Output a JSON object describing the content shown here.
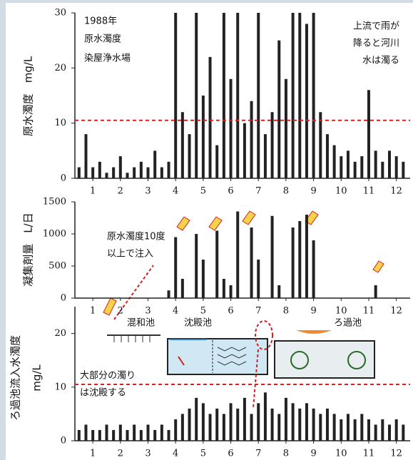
{
  "chart_data": [
    {
      "type": "bar",
      "ylabel": "原水濁度　mg/L",
      "color": "#222222",
      "threshold": 10.5,
      "threshold_color": "#e02020",
      "notes": [
        "1988年",
        "原水濁度",
        "染屋浄水場",
        "上流で雨が",
        "降ると河川",
        "水は濁る"
      ],
      "x": [
        0.5,
        0.75,
        1,
        1.25,
        1.5,
        1.75,
        2,
        2.25,
        2.5,
        2.75,
        3,
        3.25,
        3.5,
        3.75,
        4,
        4.25,
        4.5,
        4.75,
        5,
        5.25,
        5.5,
        5.75,
        6,
        6.25,
        6.5,
        6.75,
        7,
        7.25,
        7.5,
        7.75,
        8,
        8.25,
        8.5,
        8.75,
        9,
        9.25,
        9.5,
        9.75,
        10,
        10.25,
        10.5,
        10.75,
        11,
        11.25,
        11.5,
        11.75,
        12,
        12.25
      ],
      "values": [
        2,
        8,
        2,
        3,
        1,
        2,
        4,
        1,
        2,
        3,
        2,
        5,
        2,
        3,
        30,
        12,
        8,
        30,
        15,
        22,
        6,
        30,
        18,
        30,
        10,
        14,
        30,
        8,
        12,
        25,
        18,
        30,
        30,
        28,
        30,
        12,
        8,
        6,
        4,
        5,
        3,
        4,
        16,
        5,
        3,
        5,
        4,
        3
      ],
      "xlim": [
        0.35,
        12.5
      ],
      "xticks": [
        1,
        2,
        3,
        4,
        5,
        6,
        7,
        8,
        9,
        10,
        11,
        12
      ],
      "ylim": [
        0,
        30
      ],
      "yticks": [
        0,
        10,
        20,
        30
      ]
    },
    {
      "type": "bar",
      "ylabel": "凝集剤量　L/日",
      "color": "#222222",
      "notes": [
        "原水濁度10度",
        "以上で注入"
      ],
      "x": [
        0.5,
        0.75,
        1,
        1.25,
        1.5,
        1.75,
        2,
        2.25,
        2.5,
        2.75,
        3,
        3.25,
        3.5,
        3.75,
        4,
        4.25,
        4.5,
        4.75,
        5,
        5.25,
        5.5,
        5.75,
        6,
        6.25,
        6.5,
        6.75,
        7,
        7.25,
        7.5,
        7.75,
        8,
        8.25,
        8.5,
        8.75,
        9,
        9.25,
        9.5,
        9.75,
        10,
        10.25,
        10.5,
        10.75,
        11,
        11.25,
        11.5,
        11.75,
        12,
        12.25
      ],
      "values": [
        0,
        0,
        0,
        0,
        0,
        0,
        0,
        0,
        0,
        0,
        0,
        0,
        0,
        120,
        950,
        300,
        0,
        1000,
        600,
        0,
        1050,
        300,
        200,
        1350,
        0,
        1100,
        600,
        0,
        1280,
        200,
        0,
        1100,
        1200,
        1300,
        900,
        0,
        0,
        0,
        0,
        0,
        0,
        0,
        0,
        200,
        0,
        0,
        0,
        0
      ],
      "xlim": [
        0.35,
        12.5
      ],
      "xticks": [
        1,
        2,
        3,
        4,
        5,
        6,
        7,
        8,
        9,
        10,
        11,
        12
      ],
      "ylim": [
        0,
        1500
      ],
      "yticks": [
        0,
        500,
        1000,
        1500
      ]
    },
    {
      "type": "bar",
      "ylabel": [
        "ろ過池流入水濁度",
        "mg/L"
      ],
      "color": "#222222",
      "threshold": 10.5,
      "threshold_color": "#e02020",
      "notes": [
        "混和池",
        "沈殿池",
        "ろ過池",
        "大部分の濁り",
        "は沈殿する"
      ],
      "x": [
        0.5,
        0.75,
        1,
        1.25,
        1.5,
        1.75,
        2,
        2.25,
        2.5,
        2.75,
        3,
        3.25,
        3.5,
        3.75,
        4,
        4.25,
        4.5,
        4.75,
        5,
        5.25,
        5.5,
        5.75,
        6,
        6.25,
        6.5,
        6.75,
        7,
        7.25,
        7.5,
        7.75,
        8,
        8.25,
        8.5,
        8.75,
        9,
        9.25,
        9.5,
        9.75,
        10,
        10.25,
        10.5,
        10.75,
        11,
        11.25,
        11.5,
        11.75,
        12,
        12.25
      ],
      "values": [
        2,
        3,
        2,
        2,
        3,
        2,
        3,
        2,
        3,
        2,
        3,
        2,
        3,
        2,
        4,
        5,
        6,
        8,
        7,
        5,
        6,
        5,
        7,
        6,
        8,
        5,
        7,
        9,
        6,
        5,
        8,
        7,
        6,
        7,
        6,
        5,
        6,
        5,
        4,
        5,
        4,
        5,
        4,
        3,
        4,
        3,
        4,
        3
      ],
      "xlim": [
        0.35,
        12.5
      ],
      "xticks": [
        1,
        2,
        3,
        4,
        5,
        6,
        7,
        8,
        9,
        10,
        11,
        12
      ],
      "ylim": [
        0,
        25
      ],
      "yticks": [
        0,
        10,
        20
      ]
    }
  ]
}
